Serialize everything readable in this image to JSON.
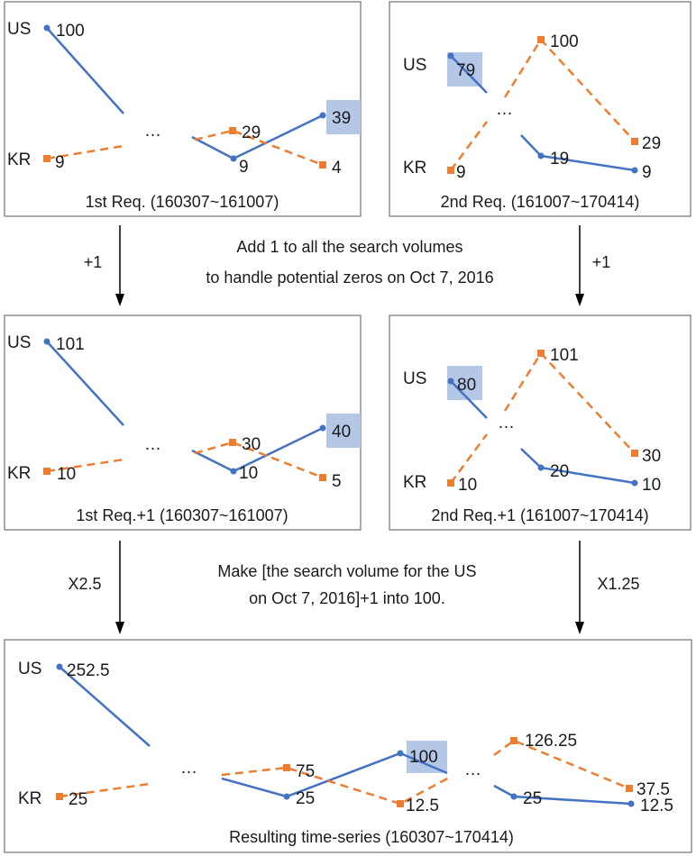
{
  "series_names": {
    "us": "US",
    "kr": "KR"
  },
  "colors": {
    "us": "#4472c4",
    "kr": "#ed7d31",
    "highlight": "#b4c7e7"
  },
  "ellipsis": "…",
  "panels": {
    "req1": {
      "caption": "1st Req. (160307~161007)",
      "us": [
        "100",
        "9",
        "39"
      ],
      "kr": [
        "9",
        "29",
        "4"
      ]
    },
    "req2": {
      "caption": "2nd Req. (161007~170414)",
      "us": [
        "79",
        "19",
        "9"
      ],
      "kr": [
        "9",
        "100",
        "29"
      ]
    },
    "req1p": {
      "caption": "1st Req.+1 (160307~161007)",
      "us": [
        "101",
        "10",
        "40"
      ],
      "kr": [
        "10",
        "30",
        "5"
      ]
    },
    "req2p": {
      "caption": "2nd Req.+1 (161007~170414)",
      "us": [
        "80",
        "20",
        "10"
      ],
      "kr": [
        "10",
        "101",
        "30"
      ]
    },
    "result": {
      "caption": "Resulting time-series (160307~170414)",
      "us": [
        "252.5",
        "25",
        "100",
        "25",
        "12.5"
      ],
      "kr": [
        "25",
        "75",
        "12.5",
        "126.25",
        "37.5"
      ]
    }
  },
  "steps": {
    "step1": {
      "left_op": "+1",
      "right_op": "+1",
      "note_line1": "Add 1 to all the search volumes",
      "note_line2": "to handle potential zeros on Oct 7, 2016"
    },
    "step2": {
      "left_op": "X2.5",
      "right_op": "X1.25",
      "note_line1": "Make [the search volume for the US",
      "note_line2": "on Oct 7, 2016]+1 into 100."
    }
  }
}
